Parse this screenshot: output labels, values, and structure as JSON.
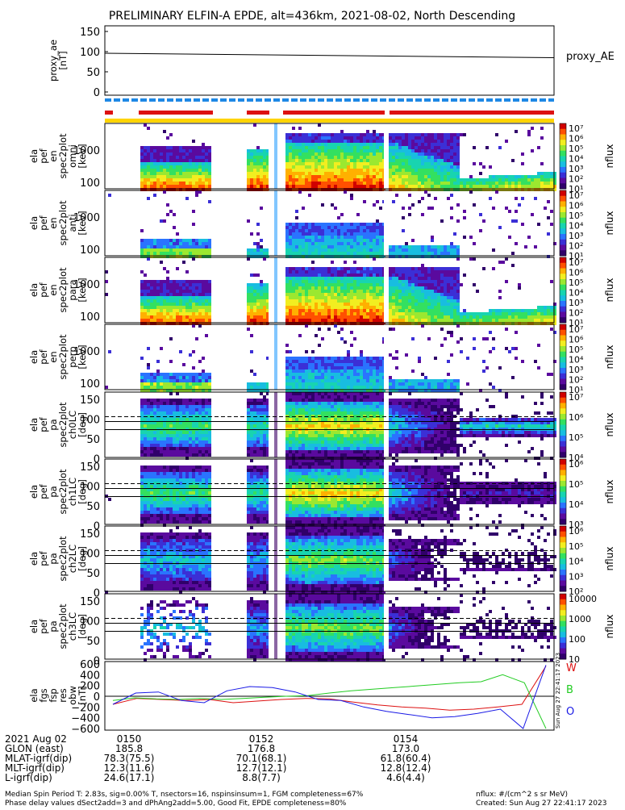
{
  "title": "PRELIMINARY ELFIN-A EPDE, alt=436km, 2021-08-02, North Descending",
  "colors": {
    "red": "#dd1111",
    "blue": "#1e88e5",
    "yellow": "#ffd400",
    "green": "#22cc22",
    "purple": "#3d0066",
    "spec_scale": [
      "#30006a",
      "#5a0a9e",
      "#3b2fd6",
      "#2a73ff",
      "#18bde0",
      "#18d4b0",
      "#33e060",
      "#9be830",
      "#f2ee20",
      "#ffb000",
      "#ff5000",
      "#d00000"
    ]
  },
  "panels": {
    "proxy_ae": {
      "ylabel": "proxy_ae\n[nT]",
      "ticks": [
        "150",
        "100",
        "50",
        "0"
      ],
      "right_label": "proxy_AE"
    },
    "spec": [
      {
        "ylabel": "ela\npef\nen\nspec2plot\nomni\n[keV]",
        "ticks": [
          "1000",
          "100"
        ],
        "cb_ticks": [
          "10⁷",
          "10⁶",
          "10⁵",
          "10⁴",
          "10³",
          "10²",
          "10¹"
        ],
        "cb_label": "nflux"
      },
      {
        "ylabel": "ela\npef\nen\nspec2plot\nanti\n[keV]",
        "ticks": [
          "1000",
          "100"
        ],
        "cb_ticks": [
          "10⁷",
          "10⁶",
          "10⁵",
          "10⁴",
          "10³",
          "10²",
          "10¹"
        ],
        "cb_label": "nflux"
      },
      {
        "ylabel": "ela\npef\nen\nspec2plot\npara\n[keV]",
        "ticks": [
          "1000",
          "100"
        ],
        "cb_ticks": [
          "10⁷",
          "10⁶",
          "10⁵",
          "10⁴",
          "10³",
          "10²",
          "10¹"
        ],
        "cb_label": "nflux"
      },
      {
        "ylabel": "ela\npef\nen\nspec2plot\nperp\n[keV]",
        "ticks": [
          "1000",
          "100"
        ],
        "cb_ticks": [
          "10⁷",
          "10⁶",
          "10⁵",
          "10⁴",
          "10³",
          "10²",
          "10¹"
        ],
        "cb_label": "nflux"
      },
      {
        "ylabel": "ela\npef\npa\nspec2plot\nch0LC\n[deg]",
        "ticks": [
          "150",
          "100",
          "50",
          "0"
        ],
        "cb_ticks": [
          "10⁷",
          "10⁶",
          "10⁵",
          "10⁴"
        ],
        "cb_label": "nflux"
      },
      {
        "ylabel": "ela\npef\npa\nspec2plot\nch1LC\n[deg]",
        "ticks": [
          "150",
          "100",
          "50",
          "0"
        ],
        "cb_ticks": [
          "10⁶",
          "10⁵",
          "10⁴",
          "10³"
        ],
        "cb_label": "nflux"
      },
      {
        "ylabel": "ela\npef\npa\nspec2plot\nch2LC\n[deg]",
        "ticks": [
          "150",
          "100",
          "50",
          "0"
        ],
        "cb_ticks": [
          "10⁶",
          "10⁵",
          "10⁴",
          "10³",
          "10²"
        ],
        "cb_label": "nflux"
      },
      {
        "ylabel": "ela\npef\npa\nspec2plot\nch3LC\n[deg]",
        "ticks": [
          "150",
          "100",
          "50",
          "0"
        ],
        "cb_ticks": [
          "10000",
          "1000",
          "100",
          "10"
        ],
        "cb_label": "nflux"
      }
    ],
    "field": {
      "ylabel": "ela\nfgs\nfsp\nres\nobw\n[nT]",
      "ticks": [
        "600",
        "400",
        "200",
        "0",
        "−200",
        "−400",
        "−600"
      ],
      "legend": [
        "W",
        "B",
        "O"
      ]
    }
  },
  "chart_data": [
    {
      "type": "line",
      "title": "PRELIMINARY ELFIN-A EPDE, alt=436km, 2021-08-02, North Descending",
      "ylabel": "proxy_ae [nT]",
      "ylim": [
        0,
        150
      ],
      "series": [
        {
          "name": "proxy_AE",
          "x": [
            0,
            1
          ],
          "values": [
            96,
            85
          ]
        }
      ]
    },
    {
      "type": "heatmap",
      "ylabel": "ela pef en spec2plot omni [keV]",
      "cbar": "nflux",
      "clim": [
        "10¹",
        "10⁷"
      ]
    },
    {
      "type": "heatmap",
      "ylabel": "ela pef en spec2plot anti [keV]",
      "cbar": "nflux",
      "clim": [
        "10¹",
        "10⁷"
      ]
    },
    {
      "type": "heatmap",
      "ylabel": "ela pef en spec2plot para [keV]",
      "cbar": "nflux",
      "clim": [
        "10¹",
        "10⁷"
      ]
    },
    {
      "type": "heatmap",
      "ylabel": "ela pef en spec2plot perp [keV]",
      "cbar": "nflux",
      "clim": [
        "10¹",
        "10⁷"
      ]
    },
    {
      "type": "heatmap",
      "ylabel": "ela pef pa spec2plot ch0LC [deg]",
      "ylim": [
        0,
        180
      ],
      "cbar": "nflux",
      "clim": [
        "10⁴",
        "10⁷"
      ]
    },
    {
      "type": "heatmap",
      "ylabel": "ela pef pa spec2plot ch1LC [deg]",
      "ylim": [
        0,
        180
      ],
      "cbar": "nflux",
      "clim": [
        "10³",
        "10⁶"
      ]
    },
    {
      "type": "heatmap",
      "ylabel": "ela pef pa spec2plot ch2LC [deg]",
      "ylim": [
        0,
        180
      ],
      "cbar": "nflux",
      "clim": [
        "10²",
        "10⁶"
      ]
    },
    {
      "type": "heatmap",
      "ylabel": "ela pef pa spec2plot ch3LC [deg]",
      "ylim": [
        0,
        180
      ],
      "cbar": "nflux",
      "clim": [
        "10",
        "10000"
      ]
    },
    {
      "type": "line",
      "ylabel": "ela fgs fsp res obw [nT]",
      "ylim": [
        -600,
        600
      ],
      "series": [
        {
          "name": "W",
          "values": [
            -150,
            -40,
            -60,
            -80,
            -60,
            -120,
            -90,
            -60,
            -40,
            -50,
            -110,
            -160,
            -200,
            -220,
            -260,
            -240,
            -200,
            -150,
            560
          ]
        },
        {
          "name": "B",
          "values": [
            -80,
            -30,
            -50,
            -60,
            -40,
            -60,
            -40,
            -20,
            0,
            10,
            60,
            100,
            130,
            160,
            190,
            220,
            250,
            270,
            400,
            250,
            -600
          ]
        },
        {
          "name": "O",
          "values": [
            -150,
            60,
            80,
            -80,
            -120,
            100,
            180,
            160,
            80,
            -60,
            -80,
            -200,
            -280,
            -340,
            -400,
            -380,
            -320,
            -240,
            -600,
            580
          ]
        }
      ]
    }
  ],
  "footer": {
    "rows": [
      {
        "label": "2021 Aug 02",
        "values": [
          "0150",
          "0152",
          "0154"
        ]
      },
      {
        "label": "GLON (east)",
        "values": [
          "185.8",
          "176.8",
          "173.0"
        ]
      },
      {
        "label": "MLAT-igrf(dip)",
        "values": [
          "78.3(75.5)",
          "70.1(68.1)",
          "61.8(60.4)"
        ]
      },
      {
        "label": "MLT-igrf(dip)",
        "values": [
          "12.3(11.6)",
          "12.7(12.1)",
          "12.8(12.4)"
        ]
      },
      {
        "label": "L-igrf(dip)",
        "values": [
          "24.6(17.1)",
          "8.8(7.7)",
          "4.6(4.4)"
        ]
      }
    ],
    "note1": "Median Spin Period T: 2.83s, sig=0.00% T, nsectors=16, nspinsinsum=1, FGM completeness=67%",
    "note2": "Phase delay values dSect2add=3 and dPhAng2add=5.00, Good Fit, EPDE completeness=80%",
    "units": "nflux: #/(cm^2 s sr MeV)",
    "created": "Created: Sun Aug 27 22:41:17 2023",
    "vertical_stamp": "Sun Aug 27 22:41:17 2023"
  }
}
